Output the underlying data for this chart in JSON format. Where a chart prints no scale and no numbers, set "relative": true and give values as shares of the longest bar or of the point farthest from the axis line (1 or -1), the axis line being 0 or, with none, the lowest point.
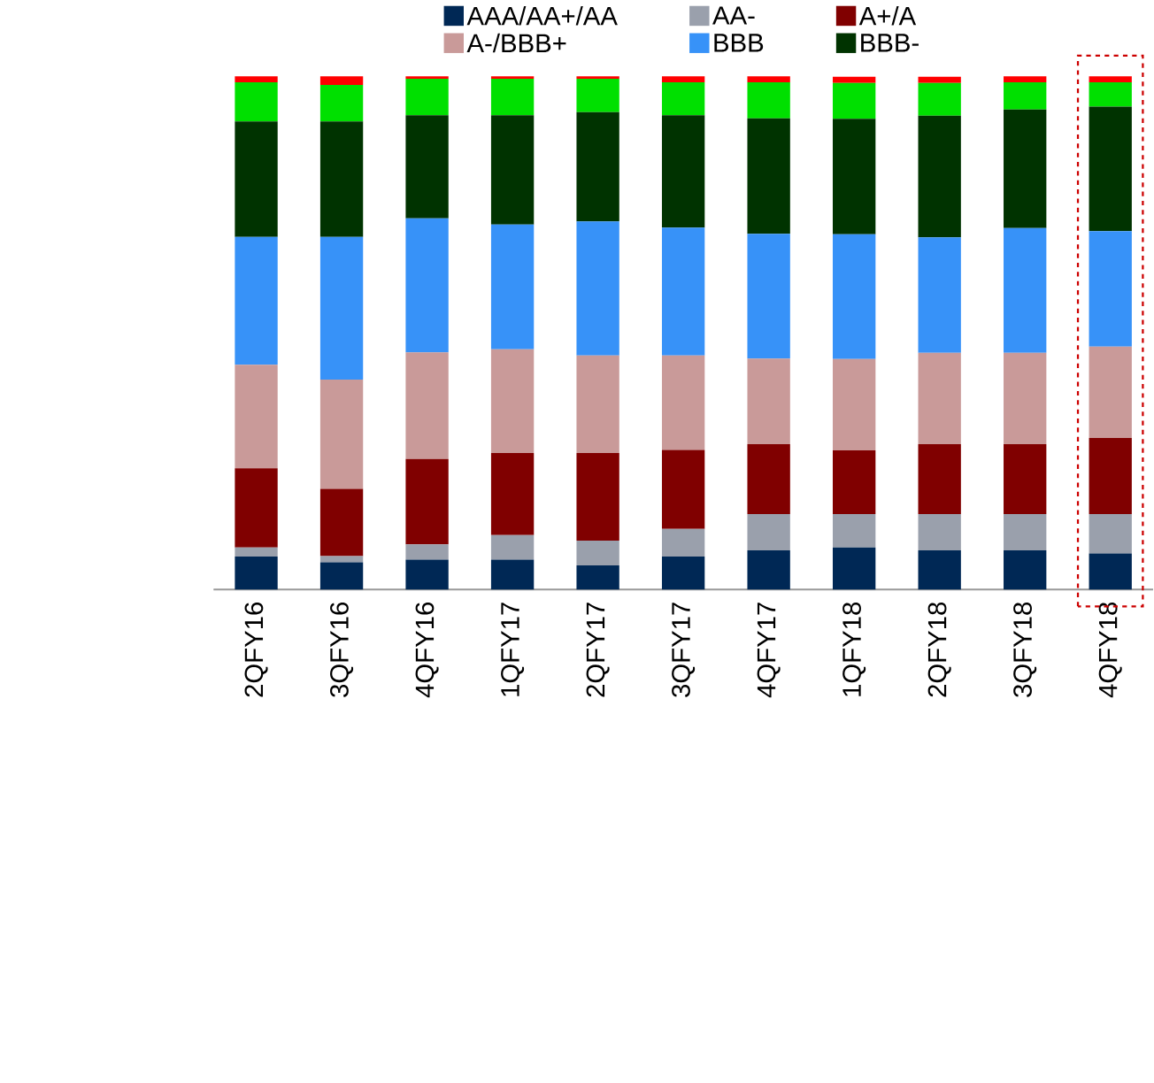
{
  "chart_data": {
    "type": "bar",
    "stacked": true,
    "relative": true,
    "legend": "top",
    "categories": [
      "2QFY16",
      "3QFY16",
      "4QFY16",
      "1QFY17",
      "2QFY17",
      "3QFY17",
      "4QFY17",
      "1QFY18",
      "2QFY18",
      "3QFY18",
      "4QFY18"
    ],
    "series": [
      {
        "name": "AAA/AA+/AA",
        "color": "#002855",
        "values": [
          0.064,
          0.053,
          0.058,
          0.058,
          0.047,
          0.064,
          0.076,
          0.082,
          0.076,
          0.076,
          0.07
        ]
      },
      {
        "name": "AA-",
        "color": "#9aa0ac",
        "values": [
          0.018,
          0.012,
          0.03,
          0.048,
          0.048,
          0.054,
          0.071,
          0.065,
          0.071,
          0.071,
          0.077
        ]
      },
      {
        "name": "A+/A",
        "color": "#800000",
        "values": [
          0.154,
          0.131,
          0.166,
          0.16,
          0.171,
          0.154,
          0.136,
          0.124,
          0.136,
          0.136,
          0.148
        ]
      },
      {
        "name": "A-/BBB+",
        "color": "#c99a99",
        "values": [
          0.202,
          0.213,
          0.208,
          0.202,
          0.19,
          0.184,
          0.167,
          0.178,
          0.178,
          0.178,
          0.178
        ]
      },
      {
        "name": "BBB",
        "color": "#3792f8",
        "values": [
          0.249,
          0.278,
          0.261,
          0.243,
          0.261,
          0.249,
          0.243,
          0.243,
          0.225,
          0.243,
          0.225
        ]
      },
      {
        "name": "BBB-",
        "color": "#003300",
        "values": [
          0.225,
          0.225,
          0.201,
          0.213,
          0.213,
          0.219,
          0.225,
          0.225,
          0.237,
          0.231,
          0.243
        ]
      },
      {
        "color": "#00e000",
        "values": [
          0.076,
          0.071,
          0.071,
          0.071,
          0.065,
          0.064,
          0.07,
          0.07,
          0.064,
          0.053,
          0.047
        ]
      },
      {
        "color": "#ff0000",
        "values": [
          0.012,
          0.017,
          0.005,
          0.005,
          0.005,
          0.012,
          0.012,
          0.012,
          0.012,
          0.012,
          0.012
        ]
      }
    ]
  }
}
